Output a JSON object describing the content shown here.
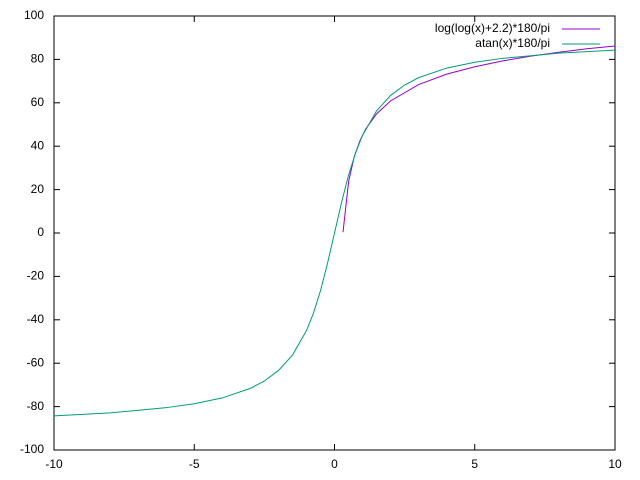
{
  "chart_data": {
    "type": "line",
    "xlim": [
      -10,
      10
    ],
    "xticks": [
      -10,
      -5,
      0,
      5,
      10
    ],
    "ylim": [
      -100,
      100
    ],
    "yticks": [
      -100,
      -80,
      -60,
      -40,
      -20,
      0,
      20,
      40,
      60,
      80,
      100
    ],
    "legend": "top-right",
    "series": [
      {
        "name": "log(log(x)+2.2)*180/pi",
        "color": "#9400d3",
        "x": [
          0.303,
          0.505,
          0.707,
          0.909,
          1.111,
          1.5,
          2,
          3,
          4,
          5,
          6,
          7,
          8,
          9,
          10
        ],
        "values": [
          0.35,
          23.9,
          35.3,
          42.6,
          47.9,
          54.9,
          60.9,
          68.4,
          73.2,
          76.6,
          79.3,
          81.5,
          83.3,
          84.9,
          86.2
        ]
      },
      {
        "name": "atan(x)*180/pi",
        "color": "#009e73",
        "x": [
          -10,
          -8,
          -6,
          -5,
          -4,
          -3,
          -2.5,
          -2,
          -1.5,
          -1,
          -0.75,
          -0.5,
          -0.25,
          0,
          0.25,
          0.5,
          0.75,
          1,
          1.5,
          2,
          2.5,
          3,
          4,
          5,
          6,
          8,
          10
        ],
        "values": [
          -84.3,
          -82.9,
          -80.5,
          -78.7,
          -76.0,
          -71.6,
          -68.2,
          -63.4,
          -56.3,
          -45.0,
          -36.9,
          -26.6,
          -14.0,
          0,
          14.0,
          26.6,
          36.9,
          45.0,
          56.3,
          63.4,
          68.2,
          71.6,
          76.0,
          78.7,
          80.5,
          82.9,
          84.3
        ]
      }
    ]
  }
}
